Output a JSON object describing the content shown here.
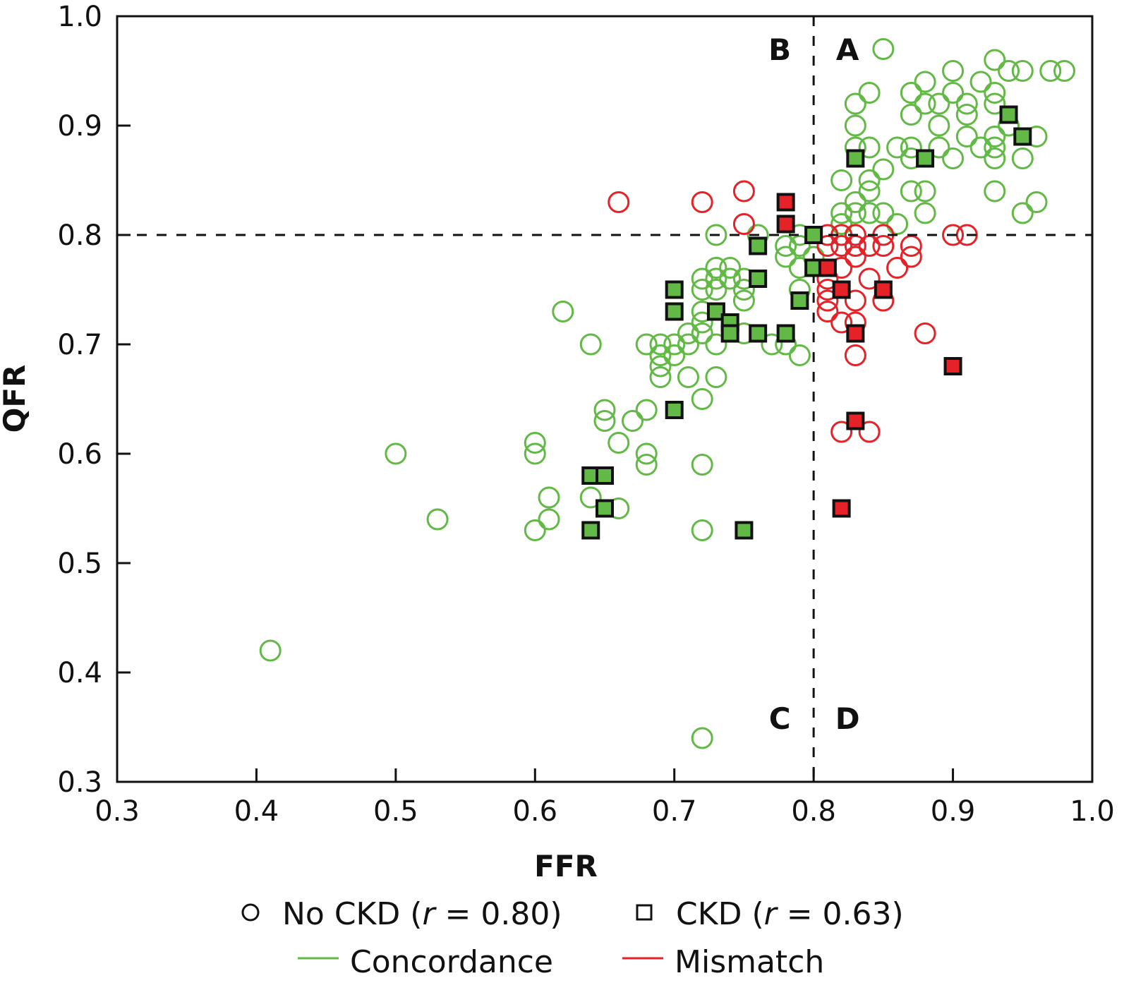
{
  "chart_data": {
    "type": "scatter",
    "title": "",
    "xlabel": "FFR",
    "ylabel": "QFR",
    "xlim": [
      0.3,
      1.0
    ],
    "ylim": [
      0.3,
      1.0
    ],
    "x_ticks": [
      "0.3",
      "0.4",
      "0.5",
      "0.6",
      "0.7",
      "0.8",
      "0.9",
      "1.0"
    ],
    "y_ticks": [
      "0.3",
      "0.4",
      "0.5",
      "0.6",
      "0.7",
      "0.8",
      "0.9",
      "1.0"
    ],
    "grid": false,
    "thresholds": {
      "x": 0.8,
      "y": 0.8,
      "style": "dashed"
    },
    "quadrant_labels": [
      {
        "label": "A",
        "position": "top-right of threshold"
      },
      {
        "label": "B",
        "position": "top-left of threshold"
      },
      {
        "label": "C",
        "position": "bottom-left of threshold"
      },
      {
        "label": "D",
        "position": "bottom-right of threshold"
      }
    ],
    "colors": {
      "concordance": "#62b946",
      "mismatch": "#e52228",
      "outline": "#111111"
    },
    "legend": {
      "placement": "bottom",
      "entries": [
        {
          "marker": "circle",
          "label_prefix": "No CKD (",
          "label_r": "r",
          "label_suffix": " = 0.80)"
        },
        {
          "marker": "square",
          "label_prefix": "CKD (",
          "label_r": "r",
          "label_suffix": " = 0.63)"
        },
        {
          "marker": "line",
          "color": "concordance",
          "label": "Concordance"
        },
        {
          "marker": "line",
          "color": "mismatch",
          "label": "Mismatch"
        }
      ]
    },
    "series": [
      {
        "name": "No CKD - Concordance",
        "marker": "circle",
        "color": "concordance",
        "points": [
          [
            0.41,
            0.42
          ],
          [
            0.5,
            0.6
          ],
          [
            0.53,
            0.54
          ],
          [
            0.6,
            0.61
          ],
          [
            0.6,
            0.6
          ],
          [
            0.6,
            0.53
          ],
          [
            0.61,
            0.56
          ],
          [
            0.61,
            0.54
          ],
          [
            0.62,
            0.73
          ],
          [
            0.64,
            0.7
          ],
          [
            0.64,
            0.56
          ],
          [
            0.65,
            0.64
          ],
          [
            0.65,
            0.63
          ],
          [
            0.66,
            0.61
          ],
          [
            0.66,
            0.55
          ],
          [
            0.67,
            0.63
          ],
          [
            0.68,
            0.7
          ],
          [
            0.68,
            0.64
          ],
          [
            0.68,
            0.6
          ],
          [
            0.68,
            0.59
          ],
          [
            0.69,
            0.7
          ],
          [
            0.69,
            0.69
          ],
          [
            0.69,
            0.68
          ],
          [
            0.69,
            0.67
          ],
          [
            0.7,
            0.7
          ],
          [
            0.7,
            0.69
          ],
          [
            0.71,
            0.71
          ],
          [
            0.71,
            0.7
          ],
          [
            0.71,
            0.67
          ],
          [
            0.72,
            0.76
          ],
          [
            0.72,
            0.75
          ],
          [
            0.72,
            0.73
          ],
          [
            0.72,
            0.72
          ],
          [
            0.72,
            0.71
          ],
          [
            0.72,
            0.65
          ],
          [
            0.72,
            0.59
          ],
          [
            0.72,
            0.53
          ],
          [
            0.72,
            0.34
          ],
          [
            0.73,
            0.8
          ],
          [
            0.73,
            0.77
          ],
          [
            0.73,
            0.76
          ],
          [
            0.73,
            0.75
          ],
          [
            0.73,
            0.7
          ],
          [
            0.73,
            0.67
          ],
          [
            0.74,
            0.77
          ],
          [
            0.74,
            0.76
          ],
          [
            0.75,
            0.76
          ],
          [
            0.75,
            0.75
          ],
          [
            0.75,
            0.74
          ],
          [
            0.75,
            0.71
          ],
          [
            0.76,
            0.8
          ],
          [
            0.77,
            0.7
          ],
          [
            0.78,
            0.79
          ],
          [
            0.78,
            0.78
          ],
          [
            0.78,
            0.7
          ],
          [
            0.79,
            0.8
          ],
          [
            0.79,
            0.79
          ],
          [
            0.79,
            0.77
          ],
          [
            0.79,
            0.75
          ],
          [
            0.79,
            0.69
          ],
          [
            0.8,
            0.78
          ],
          [
            0.82,
            0.85
          ],
          [
            0.82,
            0.82
          ],
          [
            0.82,
            0.81
          ],
          [
            0.83,
            0.92
          ],
          [
            0.83,
            0.9
          ],
          [
            0.83,
            0.88
          ],
          [
            0.83,
            0.83
          ],
          [
            0.83,
            0.82
          ],
          [
            0.84,
            0.93
          ],
          [
            0.84,
            0.88
          ],
          [
            0.84,
            0.85
          ],
          [
            0.84,
            0.84
          ],
          [
            0.84,
            0.82
          ],
          [
            0.85,
            0.97
          ],
          [
            0.85,
            0.86
          ],
          [
            0.85,
            0.82
          ],
          [
            0.86,
            0.88
          ],
          [
            0.86,
            0.81
          ],
          [
            0.87,
            0.93
          ],
          [
            0.87,
            0.91
          ],
          [
            0.87,
            0.88
          ],
          [
            0.87,
            0.87
          ],
          [
            0.87,
            0.84
          ],
          [
            0.88,
            0.94
          ],
          [
            0.88,
            0.92
          ],
          [
            0.88,
            0.84
          ],
          [
            0.88,
            0.82
          ],
          [
            0.89,
            0.92
          ],
          [
            0.89,
            0.9
          ],
          [
            0.89,
            0.88
          ],
          [
            0.9,
            0.95
          ],
          [
            0.9,
            0.93
          ],
          [
            0.9,
            0.87
          ],
          [
            0.91,
            0.92
          ],
          [
            0.91,
            0.91
          ],
          [
            0.91,
            0.89
          ],
          [
            0.92,
            0.94
          ],
          [
            0.92,
            0.88
          ],
          [
            0.93,
            0.96
          ],
          [
            0.93,
            0.93
          ],
          [
            0.93,
            0.92
          ],
          [
            0.93,
            0.89
          ],
          [
            0.93,
            0.88
          ],
          [
            0.93,
            0.87
          ],
          [
            0.93,
            0.84
          ],
          [
            0.94,
            0.95
          ],
          [
            0.94,
            0.9
          ],
          [
            0.95,
            0.95
          ],
          [
            0.95,
            0.87
          ],
          [
            0.95,
            0.82
          ],
          [
            0.96,
            0.89
          ],
          [
            0.96,
            0.83
          ],
          [
            0.97,
            0.95
          ],
          [
            0.98,
            0.95
          ]
        ]
      },
      {
        "name": "No CKD - Mismatch",
        "marker": "circle",
        "color": "mismatch",
        "points": [
          [
            0.66,
            0.83
          ],
          [
            0.72,
            0.83
          ],
          [
            0.75,
            0.84
          ],
          [
            0.75,
            0.81
          ],
          [
            0.81,
            0.8
          ],
          [
            0.81,
            0.79
          ],
          [
            0.81,
            0.76
          ],
          [
            0.81,
            0.75
          ],
          [
            0.81,
            0.74
          ],
          [
            0.81,
            0.73
          ],
          [
            0.82,
            0.8
          ],
          [
            0.82,
            0.79
          ],
          [
            0.82,
            0.77
          ],
          [
            0.82,
            0.72
          ],
          [
            0.82,
            0.62
          ],
          [
            0.83,
            0.8
          ],
          [
            0.83,
            0.79
          ],
          [
            0.83,
            0.78
          ],
          [
            0.83,
            0.74
          ],
          [
            0.83,
            0.72
          ],
          [
            0.83,
            0.69
          ],
          [
            0.84,
            0.79
          ],
          [
            0.84,
            0.76
          ],
          [
            0.84,
            0.62
          ],
          [
            0.85,
            0.8
          ],
          [
            0.85,
            0.79
          ],
          [
            0.85,
            0.74
          ],
          [
            0.86,
            0.77
          ],
          [
            0.87,
            0.79
          ],
          [
            0.87,
            0.78
          ],
          [
            0.88,
            0.71
          ],
          [
            0.9,
            0.8
          ],
          [
            0.91,
            0.8
          ]
        ]
      },
      {
        "name": "CKD - Concordance",
        "marker": "square",
        "color": "concordance",
        "points": [
          [
            0.64,
            0.58
          ],
          [
            0.65,
            0.58
          ],
          [
            0.65,
            0.55
          ],
          [
            0.64,
            0.53
          ],
          [
            0.7,
            0.75
          ],
          [
            0.7,
            0.73
          ],
          [
            0.7,
            0.64
          ],
          [
            0.73,
            0.73
          ],
          [
            0.74,
            0.72
          ],
          [
            0.74,
            0.71
          ],
          [
            0.75,
            0.53
          ],
          [
            0.76,
            0.79
          ],
          [
            0.76,
            0.76
          ],
          [
            0.76,
            0.71
          ],
          [
            0.78,
            0.71
          ],
          [
            0.79,
            0.74
          ],
          [
            0.8,
            0.8
          ],
          [
            0.8,
            0.77
          ],
          [
            0.83,
            0.87
          ],
          [
            0.88,
            0.87
          ],
          [
            0.94,
            0.91
          ],
          [
            0.95,
            0.89
          ]
        ]
      },
      {
        "name": "CKD - Mismatch",
        "marker": "square",
        "color": "mismatch",
        "points": [
          [
            0.78,
            0.83
          ],
          [
            0.78,
            0.81
          ],
          [
            0.81,
            0.77
          ],
          [
            0.82,
            0.75
          ],
          [
            0.85,
            0.75
          ],
          [
            0.83,
            0.71
          ],
          [
            0.9,
            0.68
          ],
          [
            0.83,
            0.63
          ],
          [
            0.82,
            0.55
          ]
        ]
      }
    ]
  }
}
